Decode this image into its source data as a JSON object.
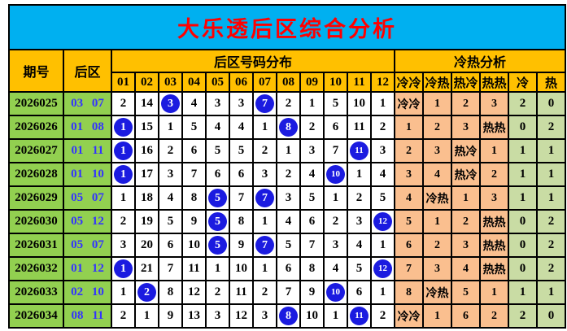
{
  "title": "大乐透后区综合分析",
  "colors": {
    "banner_bg": "#00B0F0",
    "title_text": "#FF0000",
    "header_bg": "#FFC000",
    "period_bg": "#92D050",
    "backzone_text": "#3333FF",
    "coldhot_bg": "#FABF8F",
    "count_bg": "#C9DCA4",
    "circle_bg": "#1B1BE0",
    "grid_line": "#000000"
  },
  "chart_data": {
    "type": "table",
    "title": "大乐透后区综合分析",
    "headers": {
      "period": "期号",
      "back_zone": "后区",
      "distribution_group": "后区号码分布",
      "cold_hot_group": "冷热分析",
      "ball_columns": [
        "01",
        "02",
        "03",
        "04",
        "05",
        "06",
        "07",
        "08",
        "09",
        "10",
        "11",
        "12"
      ],
      "cold_hot_columns": [
        "冷冷",
        "冷热",
        "热冷",
        "热热",
        "冷",
        "热"
      ]
    },
    "rows": [
      {
        "period": "2026025",
        "back_zone": "03 07",
        "dist": [
          "2",
          "14",
          "3",
          "4",
          "3",
          "3",
          "7",
          "2",
          "1",
          "5",
          "10",
          "1"
        ],
        "circled": [
          2,
          6
        ],
        "cold_hot": [
          "冷冷",
          "1",
          "2",
          "3"
        ],
        "cold": "2",
        "hot": "0"
      },
      {
        "period": "2026026",
        "back_zone": "01 08",
        "dist": [
          "1",
          "15",
          "1",
          "5",
          "4",
          "4",
          "1",
          "8",
          "2",
          "6",
          "11",
          "2"
        ],
        "circled": [
          0,
          7
        ],
        "cold_hot": [
          "1",
          "2",
          "3",
          "热热"
        ],
        "cold": "0",
        "hot": "2"
      },
      {
        "period": "2026027",
        "back_zone": "01 11",
        "dist": [
          "1",
          "16",
          "2",
          "6",
          "5",
          "5",
          "2",
          "1",
          "3",
          "7",
          "11",
          "3"
        ],
        "circled": [
          0,
          10
        ],
        "cold_hot": [
          "2",
          "3",
          "热冷",
          "1"
        ],
        "cold": "1",
        "hot": "1"
      },
      {
        "period": "2026028",
        "back_zone": "01 10",
        "dist": [
          "1",
          "17",
          "3",
          "7",
          "6",
          "6",
          "3",
          "2",
          "4",
          "10",
          "1",
          "4"
        ],
        "circled": [
          0,
          9
        ],
        "cold_hot": [
          "3",
          "4",
          "热冷",
          "2"
        ],
        "cold": "1",
        "hot": "1"
      },
      {
        "period": "2026029",
        "back_zone": "05 07",
        "dist": [
          "1",
          "18",
          "4",
          "8",
          "5",
          "7",
          "7",
          "3",
          "5",
          "1",
          "2",
          "5"
        ],
        "circled": [
          4,
          6
        ],
        "cold_hot": [
          "4",
          "冷热",
          "1",
          "3"
        ],
        "cold": "1",
        "hot": "1"
      },
      {
        "period": "2026030",
        "back_zone": "05 12",
        "dist": [
          "2",
          "19",
          "5",
          "9",
          "5",
          "8",
          "1",
          "4",
          "6",
          "2",
          "3",
          "12"
        ],
        "circled": [
          4,
          11
        ],
        "cold_hot": [
          "5",
          "1",
          "2",
          "热热"
        ],
        "cold": "0",
        "hot": "2"
      },
      {
        "period": "2026031",
        "back_zone": "05 07",
        "dist": [
          "3",
          "20",
          "6",
          "10",
          "5",
          "9",
          "7",
          "5",
          "7",
          "3",
          "4",
          "1"
        ],
        "circled": [
          4,
          6
        ],
        "cold_hot": [
          "6",
          "2",
          "3",
          "热热"
        ],
        "cold": "0",
        "hot": "2"
      },
      {
        "period": "2026032",
        "back_zone": "01 12",
        "dist": [
          "1",
          "21",
          "7",
          "11",
          "1",
          "10",
          "1",
          "6",
          "8",
          "4",
          "5",
          "12"
        ],
        "circled": [
          0,
          11
        ],
        "cold_hot": [
          "7",
          "3",
          "4",
          "热热"
        ],
        "cold": "0",
        "hot": "2"
      },
      {
        "period": "2026033",
        "back_zone": "02 10",
        "dist": [
          "1",
          "2",
          "8",
          "12",
          "2",
          "11",
          "2",
          "7",
          "9",
          "10",
          "6",
          "1"
        ],
        "circled": [
          1,
          9
        ],
        "cold_hot": [
          "8",
          "冷热",
          "5",
          "1"
        ],
        "cold": "1",
        "hot": "1"
      },
      {
        "period": "2026034",
        "back_zone": "08 11",
        "dist": [
          "2",
          "1",
          "9",
          "13",
          "3",
          "12",
          "3",
          "8",
          "10",
          "1",
          "11",
          "2"
        ],
        "circled": [
          7,
          10
        ],
        "cold_hot": [
          "冷冷",
          "1",
          "6",
          "2"
        ],
        "cold": "2",
        "hot": "0"
      }
    ]
  }
}
